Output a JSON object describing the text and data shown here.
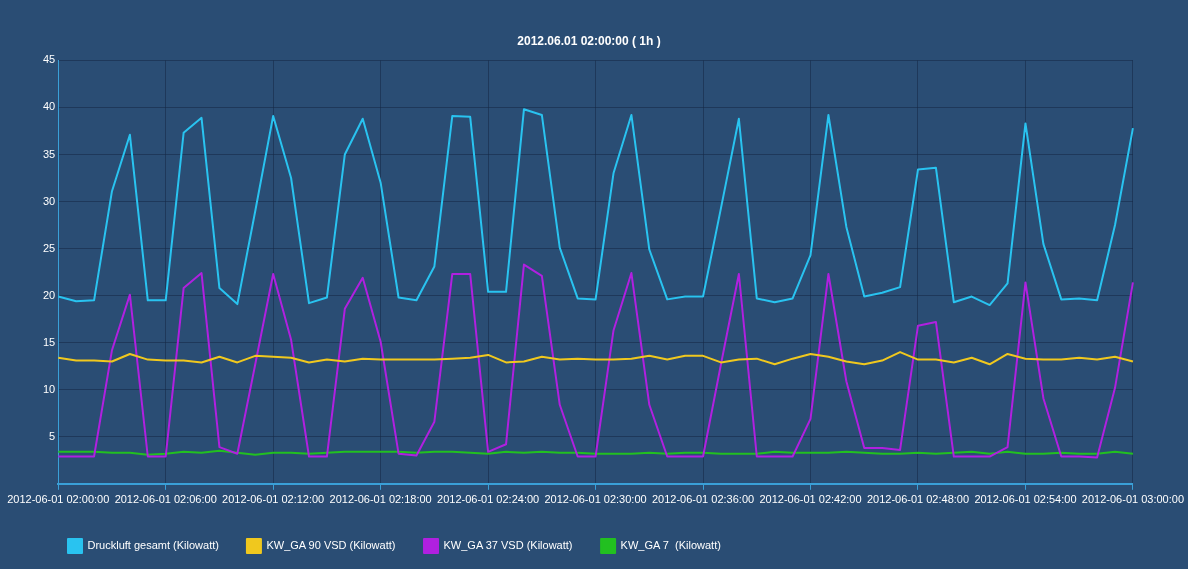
{
  "chart_data": {
    "type": "line",
    "title": "2012.06.01 02:00:00 ( 1h )",
    "categories": [
      "2012-06-01 02:00:00",
      null,
      null,
      null,
      null,
      null,
      "2012-06-01 02:06:00",
      null,
      null,
      null,
      null,
      null,
      "2012-06-01 02:12:00",
      null,
      null,
      null,
      null,
      null,
      "2012-06-01 02:18:00",
      null,
      null,
      null,
      null,
      null,
      "2012-06-01 02:24:00",
      null,
      null,
      null,
      null,
      null,
      "2012-06-01 02:30:00",
      null,
      null,
      null,
      null,
      null,
      "2012-06-01 02:36:00",
      null,
      null,
      null,
      null,
      null,
      "2012-06-01 02:42:00",
      null,
      null,
      null,
      null,
      null,
      "2012-06-01 02:48:00",
      null,
      null,
      null,
      null,
      null,
      "2012-06-01 02:54:00",
      null,
      null,
      null,
      null,
      null,
      "2012-06-01 03:00:00"
    ],
    "series": [
      {
        "name": "Druckluft gesamt (Kilowatt)",
        "color": "#29c3f0",
        "values": [
          19.9,
          19.4,
          19.5,
          31.1,
          37.1,
          19.5,
          19.5,
          37.3,
          38.9,
          20.8,
          19.1,
          29.0,
          39.1,
          32.5,
          19.2,
          19.8,
          35.0,
          38.8,
          32.0,
          19.8,
          19.5,
          23.1,
          39.1,
          39.0,
          20.4,
          20.4,
          39.8,
          39.2,
          25.1,
          19.7,
          19.6,
          33.0,
          39.2,
          24.9,
          19.6,
          19.9,
          19.9,
          29.3,
          38.8,
          19.7,
          19.3,
          19.7,
          24.3,
          39.2,
          27.3,
          19.9,
          20.3,
          20.9,
          33.4,
          33.6,
          19.3,
          19.9,
          19.0,
          21.3,
          38.3,
          25.5,
          19.6,
          19.7,
          19.5,
          27.5,
          37.8
        ]
      },
      {
        "name": "KW_GA 90 VSD (Kilowatt)",
        "color": "#f0c81e",
        "values": [
          13.4,
          13.1,
          13.1,
          13.0,
          13.8,
          13.2,
          13.1,
          13.1,
          12.9,
          13.5,
          12.9,
          13.6,
          13.5,
          13.4,
          12.9,
          13.2,
          13.0,
          13.3,
          13.2,
          13.2,
          13.2,
          13.2,
          13.3,
          13.4,
          13.7,
          12.9,
          13.0,
          13.5,
          13.2,
          13.3,
          13.2,
          13.2,
          13.3,
          13.6,
          13.2,
          13.6,
          13.6,
          12.9,
          13.2,
          13.3,
          12.7,
          13.3,
          13.8,
          13.5,
          13.0,
          12.7,
          13.1,
          14.0,
          13.2,
          13.2,
          12.9,
          13.4,
          12.7,
          13.8,
          13.3,
          13.2,
          13.2,
          13.4,
          13.2,
          13.5,
          13.0
        ]
      },
      {
        "name": "KW_GA 37 VSD (Kilowatt)",
        "color": "#b020e0",
        "values": [
          2.9,
          2.9,
          2.9,
          14.2,
          20.1,
          2.9,
          2.9,
          20.8,
          22.4,
          3.9,
          3.2,
          12.7,
          22.3,
          15.3,
          2.9,
          2.9,
          18.6,
          21.9,
          15.1,
          3.2,
          3.0,
          6.6,
          22.3,
          22.3,
          3.4,
          4.2,
          23.3,
          22.1,
          8.4,
          2.9,
          2.9,
          16.3,
          22.4,
          8.4,
          2.9,
          2.9,
          2.9,
          12.7,
          22.3,
          2.9,
          2.9,
          2.9,
          6.9,
          22.3,
          10.9,
          3.8,
          3.8,
          3.6,
          16.8,
          17.2,
          2.9,
          2.9,
          2.9,
          3.9,
          21.4,
          9.1,
          2.9,
          2.9,
          2.8,
          10.2,
          21.4
        ]
      },
      {
        "name": "KW_GA 7  (Kilowatt)",
        "color": "#22c020",
        "values": [
          3.4,
          3.4,
          3.4,
          3.3,
          3.3,
          3.1,
          3.2,
          3.4,
          3.3,
          3.5,
          3.3,
          3.1,
          3.3,
          3.3,
          3.2,
          3.3,
          3.4,
          3.4,
          3.4,
          3.4,
          3.3,
          3.4,
          3.4,
          3.3,
          3.2,
          3.4,
          3.3,
          3.4,
          3.3,
          3.3,
          3.2,
          3.2,
          3.2,
          3.3,
          3.2,
          3.3,
          3.3,
          3.2,
          3.2,
          3.2,
          3.4,
          3.3,
          3.3,
          3.3,
          3.4,
          3.3,
          3.2,
          3.2,
          3.3,
          3.2,
          3.3,
          3.4,
          3.2,
          3.4,
          3.2,
          3.2,
          3.3,
          3.2,
          3.2,
          3.4,
          3.2
        ]
      }
    ],
    "ylim": [
      0,
      45
    ],
    "yticks": [
      5,
      10,
      15,
      20,
      25,
      30,
      35,
      40,
      45
    ],
    "grid": true,
    "legend": "bottom left",
    "marker": "none",
    "line_style": "solid"
  }
}
